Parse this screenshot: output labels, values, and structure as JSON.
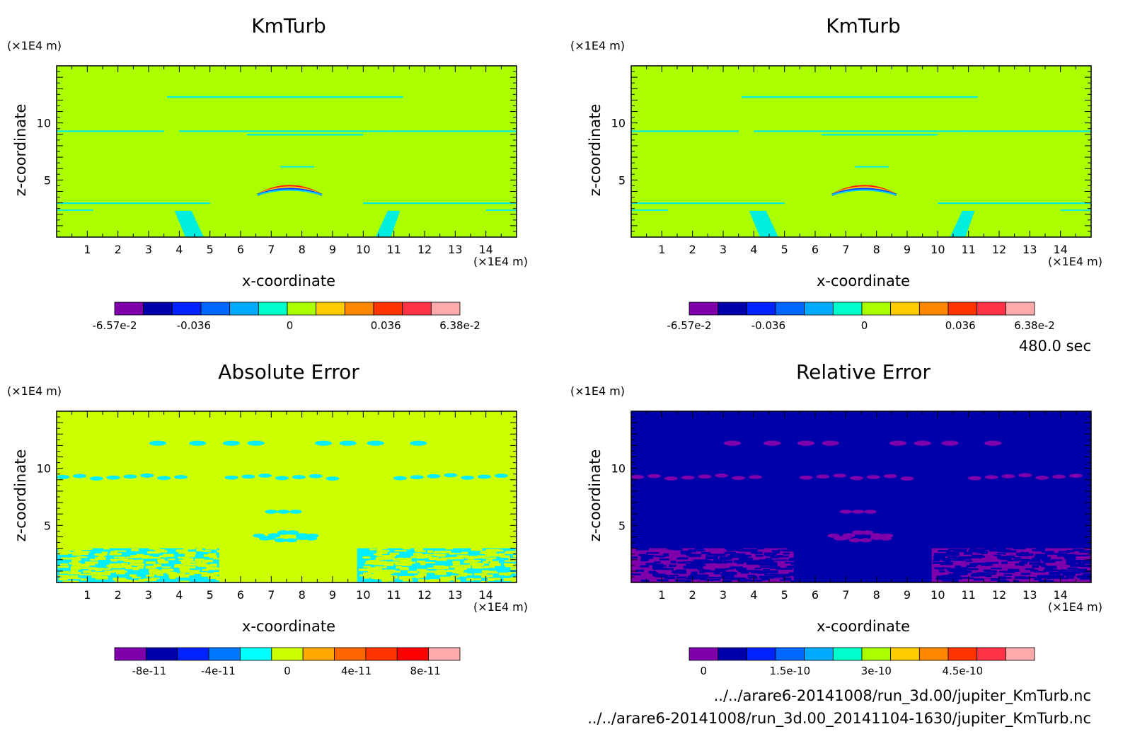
{
  "chart_data": [
    {
      "type": "heatmap",
      "title": "KmTurb",
      "xlabel": "x-coordinate",
      "ylabel": "z-coordinate",
      "x_unit": "(×1E4 m)",
      "y_unit": "(×1E4 m)",
      "xlim": [
        0,
        15
      ],
      "ylim": [
        0,
        15
      ],
      "xticks": [
        "1",
        "2",
        "3",
        "4",
        "5",
        "6",
        "7",
        "8",
        "9",
        "10",
        "11",
        "12",
        "13",
        "14"
      ],
      "yticks": [
        "5",
        "10"
      ],
      "background_color": "#aaff00",
      "colorbar": {
        "colors": [
          "#7f00aa",
          "#0000aa",
          "#0022ff",
          "#0066ff",
          "#00aaff",
          "#00ffcc",
          "#aaff00",
          "#ffcc00",
          "#ff8800",
          "#ff3300",
          "#ff3344",
          "#ffaaaa"
        ],
        "labels": [
          "-6.57e-2",
          "-0.036",
          "0",
          "0.036",
          "6.38e-2"
        ],
        "label_values": [
          -0.0657,
          -0.036,
          0,
          0.036,
          0.0638
        ],
        "range": [
          -0.0657,
          0.0638
        ]
      }
    },
    {
      "type": "heatmap",
      "title": "KmTurb",
      "xlabel": "x-coordinate",
      "ylabel": "z-coordinate",
      "x_unit": "(×1E4 m)",
      "y_unit": "(×1E4 m)",
      "xlim": [
        0,
        15
      ],
      "ylim": [
        0,
        15
      ],
      "xticks": [
        "1",
        "2",
        "3",
        "4",
        "5",
        "6",
        "7",
        "8",
        "9",
        "10",
        "11",
        "12",
        "13",
        "14"
      ],
      "yticks": [
        "5",
        "10"
      ],
      "background_color": "#aaff00",
      "colorbar": {
        "colors": [
          "#7f00aa",
          "#0000aa",
          "#0022ff",
          "#0066ff",
          "#00aaff",
          "#00ffcc",
          "#aaff00",
          "#ffcc00",
          "#ff8800",
          "#ff3300",
          "#ff3344",
          "#ffaaaa"
        ],
        "labels": [
          "-6.57e-2",
          "-0.036",
          "0",
          "0.036",
          "6.38e-2"
        ],
        "label_values": [
          -0.0657,
          -0.036,
          0,
          0.036,
          0.0638
        ],
        "range": [
          -0.0657,
          0.0638
        ]
      }
    },
    {
      "type": "heatmap",
      "title": "Absolute Error",
      "xlabel": "x-coordinate",
      "ylabel": "z-coordinate",
      "x_unit": "(×1E4 m)",
      "y_unit": "(×1E4 m)",
      "xlim": [
        0,
        15
      ],
      "ylim": [
        0,
        15
      ],
      "xticks": [
        "1",
        "2",
        "3",
        "4",
        "5",
        "6",
        "7",
        "8",
        "9",
        "10",
        "11",
        "12",
        "13",
        "14"
      ],
      "yticks": [
        "5",
        "10"
      ],
      "background_color": "#ccff00",
      "colorbar": {
        "colors": [
          "#7f00aa",
          "#0000aa",
          "#0022ff",
          "#0077ff",
          "#00ffff",
          "#ccff00",
          "#ffaa00",
          "#ff6600",
          "#ff3300",
          "#ff0000",
          "#ffaaaa"
        ],
        "labels": [
          "-8e-11",
          "-4e-11",
          "0",
          "4e-11",
          "8e-11"
        ],
        "label_values": [
          -8e-11,
          -4e-11,
          0,
          4e-11,
          8e-11
        ],
        "range": [
          -1e-10,
          1e-10
        ]
      }
    },
    {
      "type": "heatmap",
      "title": "Relative Error",
      "xlabel": "x-coordinate",
      "ylabel": "z-coordinate",
      "x_unit": "(×1E4 m)",
      "y_unit": "(×1E4 m)",
      "xlim": [
        0,
        15
      ],
      "ylim": [
        0,
        15
      ],
      "xticks": [
        "1",
        "2",
        "3",
        "4",
        "5",
        "6",
        "7",
        "8",
        "9",
        "10",
        "11",
        "12",
        "13",
        "14"
      ],
      "yticks": [
        "5",
        "10"
      ],
      "background_color": "#0000aa",
      "colorbar": {
        "colors": [
          "#7f00aa",
          "#0000aa",
          "#0022ff",
          "#0066ff",
          "#00aaff",
          "#00ffcc",
          "#aaff00",
          "#ffcc00",
          "#ff8800",
          "#ff3300",
          "#ff3344",
          "#ffaaaa"
        ],
        "labels": [
          "0",
          "1.5e-10",
          "3e-10",
          "4.5e-10"
        ],
        "label_values": [
          0,
          1.5e-10,
          3e-10,
          4.5e-10
        ],
        "range": [
          -2.5e-11,
          5.75e-10
        ]
      }
    }
  ],
  "time_label": "480.0 sec",
  "files": [
    "../../arare6-20141008/run_3d.00/jupiter_KmTurb.nc",
    "../../arare6-20141008/run_3d.00_20141104-1630/jupiter_KmTurb.nc"
  ]
}
